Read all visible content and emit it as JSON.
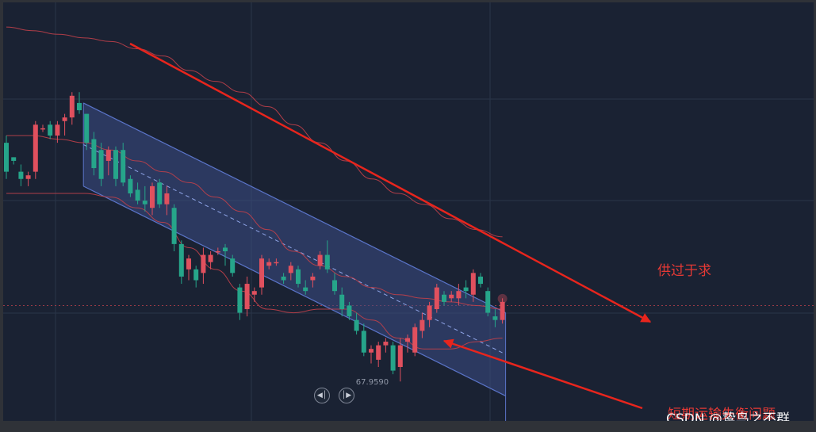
{
  "chart_data": {
    "type": "candlestick",
    "title": "",
    "xlabel": "",
    "ylabel": "",
    "ylim": [
      67.2,
      71.2
    ],
    "grid": true,
    "colors": {
      "up": "#e0505e",
      "down": "#26a58a",
      "band": "#c0404a",
      "channel_fill": "#3c4d85",
      "channel_edge": "#5a74c8",
      "annotation": "#e8251d",
      "background": "#1a2233"
    },
    "candles": [
      [
        70.3,
        70.4,
        69.8,
        69.9
      ],
      [
        70.1,
        70.1,
        70.0,
        70.05
      ],
      [
        69.9,
        70.0,
        69.7,
        69.8
      ],
      [
        69.8,
        69.9,
        69.7,
        69.85
      ],
      [
        69.9,
        70.6,
        69.8,
        70.55
      ],
      [
        70.5,
        70.55,
        70.45,
        70.5
      ],
      [
        70.55,
        70.6,
        70.35,
        70.4
      ],
      [
        70.4,
        70.6,
        70.3,
        70.55
      ],
      [
        70.6,
        70.7,
        70.4,
        70.65
      ],
      [
        70.65,
        71.0,
        70.55,
        70.95
      ],
      [
        70.85,
        71.0,
        70.7,
        70.75
      ],
      [
        70.7,
        70.7,
        70.2,
        70.3
      ],
      [
        70.35,
        70.45,
        69.85,
        69.95
      ],
      [
        70.2,
        70.3,
        69.7,
        69.8
      ],
      [
        70.05,
        70.25,
        69.85,
        70.2
      ],
      [
        70.2,
        70.25,
        69.7,
        69.8
      ],
      [
        70.2,
        70.3,
        69.7,
        69.75
      ],
      [
        69.8,
        69.85,
        69.55,
        69.6
      ],
      [
        69.65,
        69.75,
        69.45,
        69.5
      ],
      [
        69.5,
        69.7,
        69.35,
        69.45
      ],
      [
        69.4,
        69.75,
        69.3,
        69.7
      ],
      [
        69.75,
        69.8,
        69.4,
        69.45
      ],
      [
        69.45,
        69.7,
        69.3,
        69.6
      ],
      [
        69.4,
        69.45,
        68.8,
        68.9
      ],
      [
        68.9,
        68.95,
        68.35,
        68.45
      ],
      [
        68.55,
        68.75,
        68.4,
        68.7
      ],
      [
        68.55,
        68.6,
        68.3,
        68.4
      ],
      [
        68.5,
        68.85,
        68.35,
        68.75
      ],
      [
        68.65,
        68.8,
        68.55,
        68.75
      ],
      [
        68.8,
        68.85,
        68.75,
        68.8
      ],
      [
        68.85,
        68.9,
        68.6,
        68.8
      ],
      [
        68.7,
        68.75,
        68.45,
        68.5
      ],
      [
        68.3,
        68.35,
        67.85,
        67.95
      ],
      [
        68.0,
        68.45,
        67.9,
        68.35
      ],
      [
        68.2,
        68.3,
        68.1,
        68.25
      ],
      [
        68.3,
        68.75,
        68.2,
        68.7
      ],
      [
        68.6,
        68.7,
        68.55,
        68.65
      ],
      [
        68.65,
        68.7,
        68.6,
        68.65
      ],
      [
        68.45,
        68.5,
        68.35,
        68.4
      ],
      [
        68.5,
        68.65,
        68.4,
        68.6
      ],
      [
        68.55,
        68.6,
        68.3,
        68.35
      ],
      [
        68.3,
        68.4,
        68.2,
        68.25
      ],
      [
        68.4,
        68.5,
        68.3,
        68.45
      ],
      [
        68.6,
        68.8,
        68.55,
        68.75
      ],
      [
        68.75,
        68.95,
        68.5,
        68.55
      ],
      [
        68.4,
        68.5,
        68.2,
        68.25
      ],
      [
        68.2,
        68.3,
        67.9,
        68.0
      ],
      [
        68.05,
        68.1,
        67.85,
        67.9
      ],
      [
        67.85,
        67.95,
        67.65,
        67.7
      ],
      [
        67.7,
        67.8,
        67.35,
        67.4
      ],
      [
        67.4,
        67.5,
        67.25,
        67.45
      ],
      [
        67.3,
        67.55,
        67.2,
        67.5
      ],
      [
        67.5,
        67.6,
        67.4,
        67.55
      ],
      [
        67.5,
        67.55,
        67.1,
        67.15
      ],
      [
        67.2,
        67.6,
        67.0,
        67.5
      ],
      [
        67.55,
        67.65,
        67.4,
        67.6
      ],
      [
        67.4,
        67.8,
        67.35,
        67.75
      ],
      [
        67.7,
        67.95,
        67.6,
        67.85
      ],
      [
        67.85,
        68.1,
        67.75,
        68.05
      ],
      [
        68.0,
        68.35,
        67.95,
        68.3
      ],
      [
        68.2,
        68.25,
        68.05,
        68.1
      ],
      [
        68.15,
        68.25,
        68.1,
        68.2
      ],
      [
        68.15,
        68.35,
        68.05,
        68.25
      ],
      [
        68.3,
        68.4,
        68.15,
        68.25
      ],
      [
        68.2,
        68.55,
        68.1,
        68.5
      ],
      [
        68.45,
        68.5,
        68.3,
        68.35
      ],
      [
        68.25,
        68.3,
        67.9,
        67.95
      ],
      [
        67.9,
        68.0,
        67.75,
        67.85
      ],
      [
        67.85,
        68.15,
        67.8,
        68.1
      ]
    ],
    "bands": {
      "upper": [
        71.9,
        71.85,
        71.8,
        71.75,
        71.7,
        71.6,
        71.5,
        71.3,
        71.15,
        71.0,
        70.8,
        70.55,
        70.3,
        70.05,
        69.8,
        69.6,
        69.45,
        69.25,
        69.1,
        69.0
      ],
      "middle": [
        70.4,
        70.4,
        70.35,
        70.3,
        70.2,
        70.05,
        69.9,
        69.75,
        69.55,
        69.35,
        69.1,
        68.8,
        68.6,
        68.45,
        68.3,
        68.2,
        68.15,
        68.1,
        68.05,
        68.0
      ],
      "lower": [
        69.6,
        69.6,
        69.6,
        69.6,
        69.55,
        69.4,
        69.2,
        68.85,
        68.55,
        68.25,
        68.0,
        67.95,
        68.0,
        68.0,
        67.85,
        67.6,
        67.45,
        67.45,
        67.55,
        67.6
      ]
    },
    "channel": {
      "from_candle": 11,
      "to_candle": 68,
      "upper_start": 70.85,
      "upper_end": 67.95,
      "lower_start": 69.7,
      "lower_end": 66.8
    },
    "reference_price": 68.05,
    "low_label": "67.9590",
    "annotations": [
      {
        "text": "供过于求"
      },
      {
        "text": "短期运输失衡问题"
      }
    ],
    "watermark": "CSDN @鸷鸟之不群",
    "nav_icons": [
      "skip-back-icon",
      "skip-forward-icon"
    ]
  }
}
